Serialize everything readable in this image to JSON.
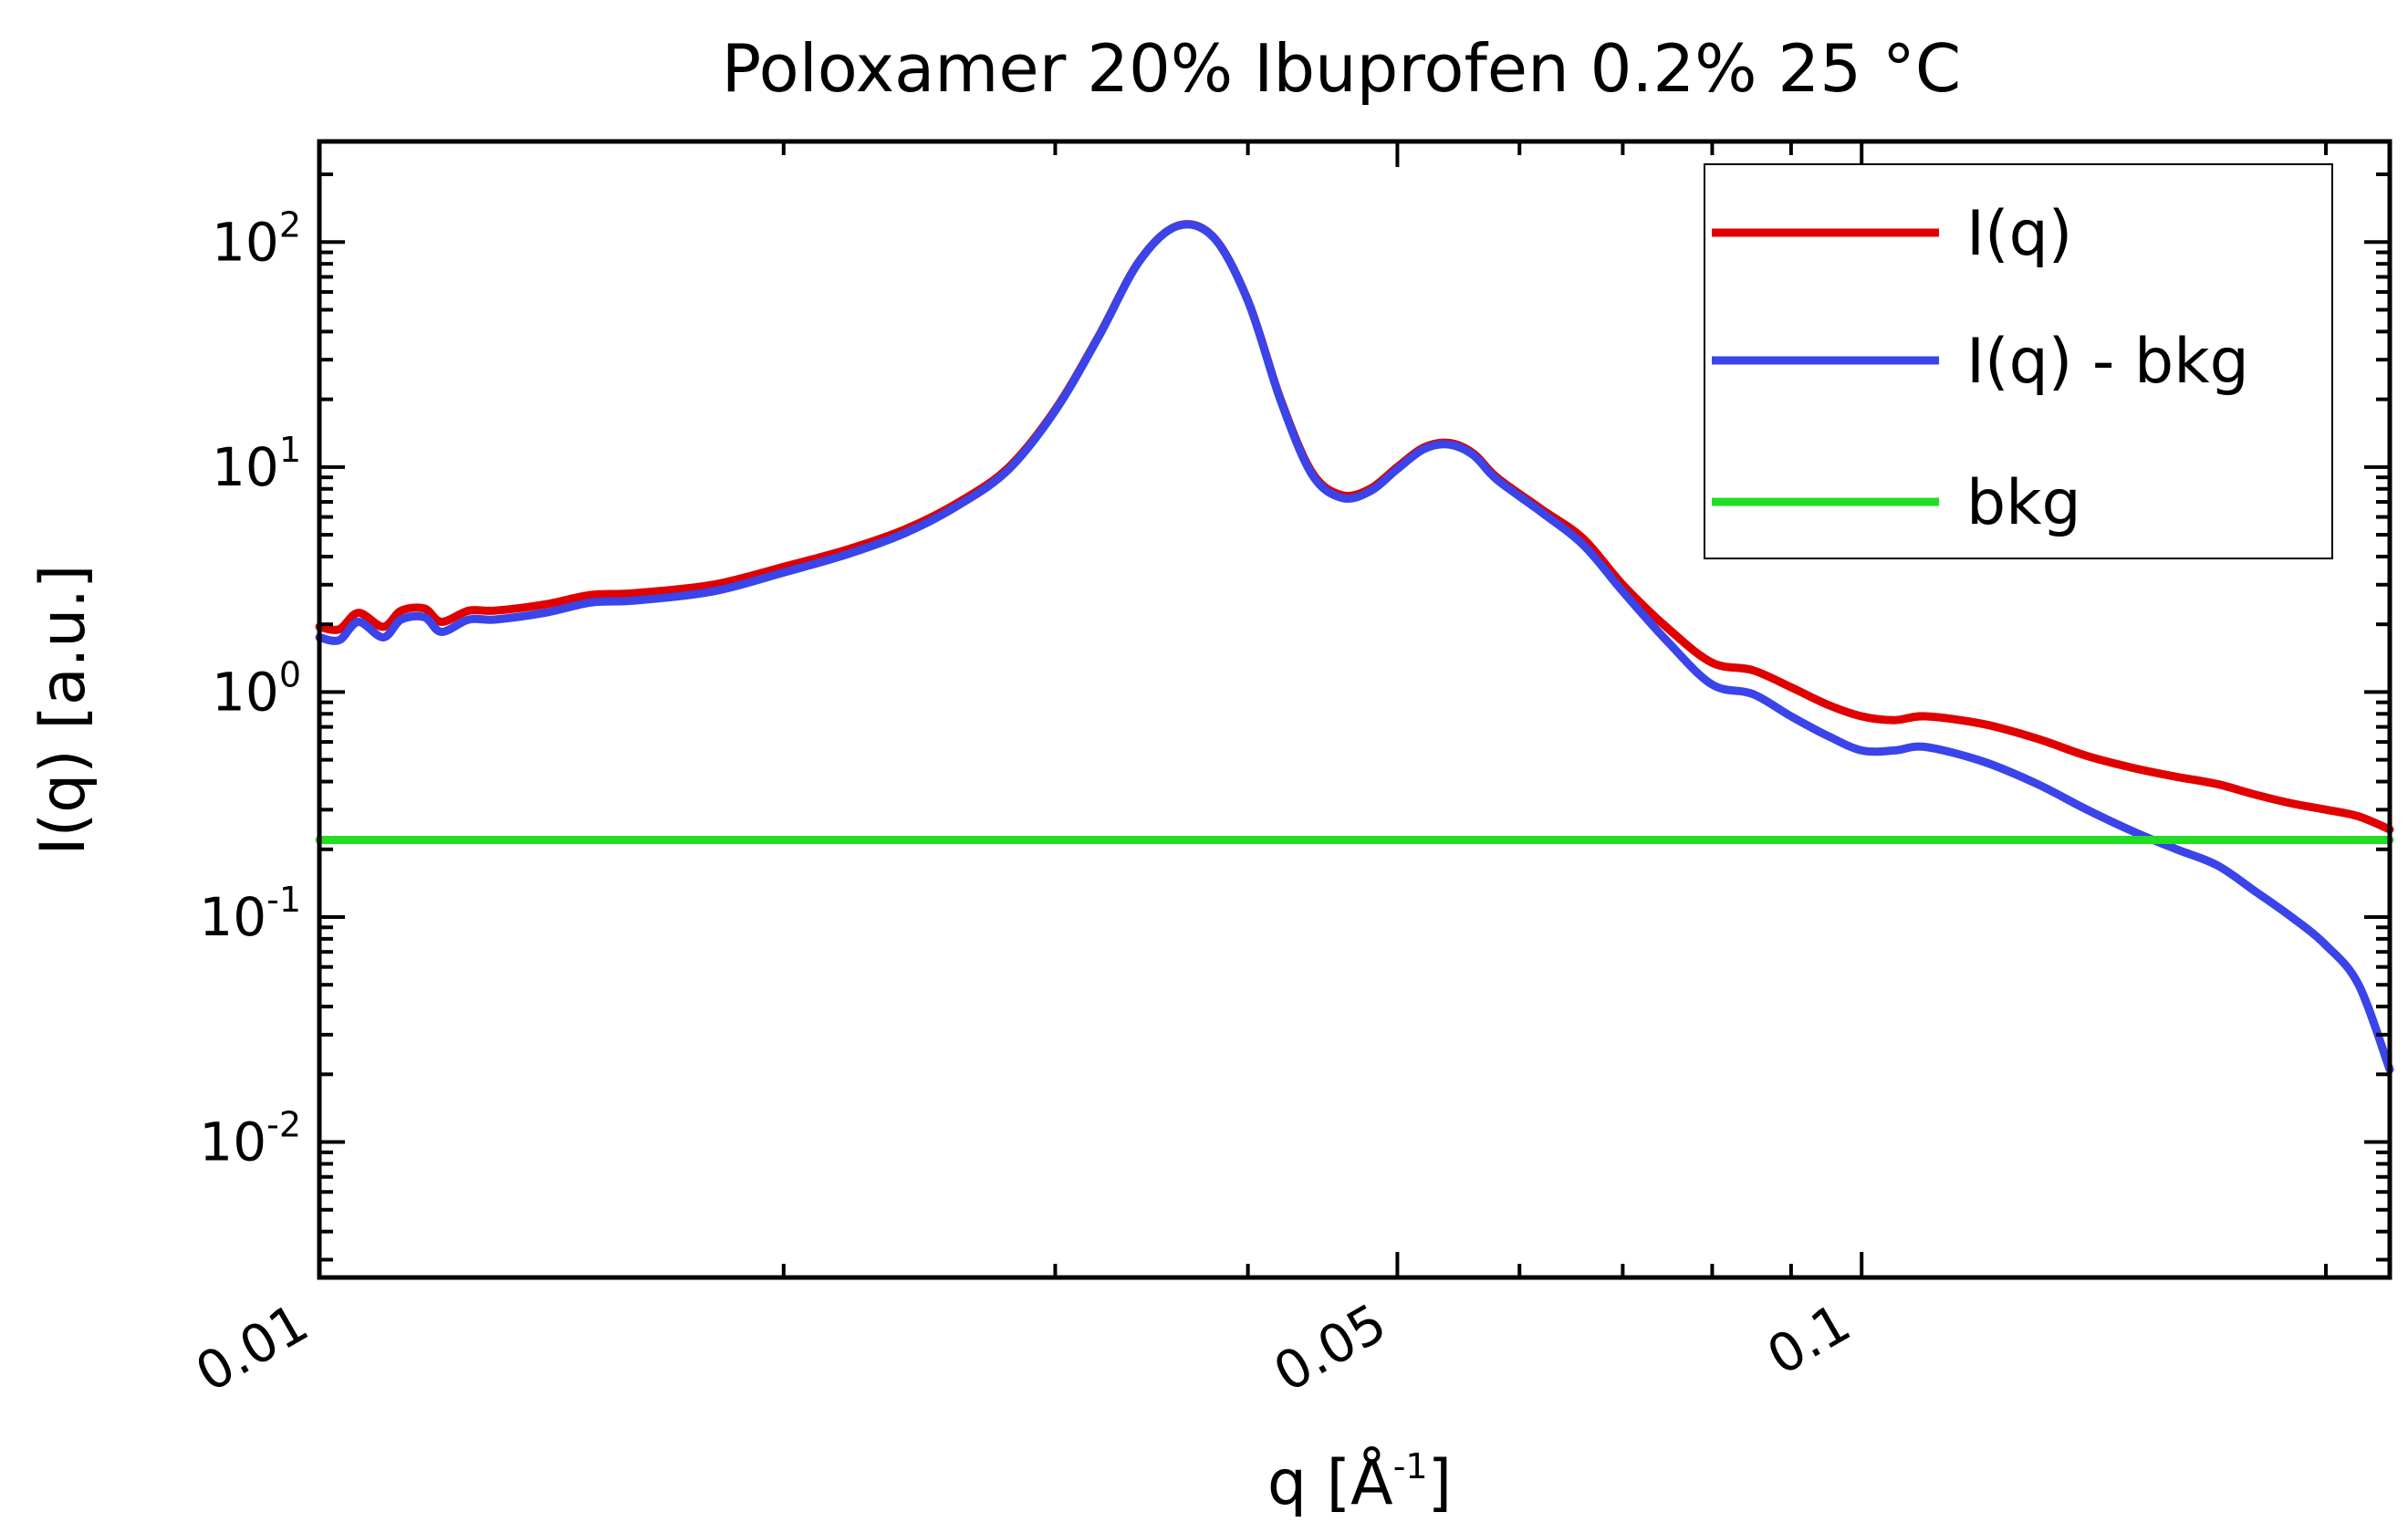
{
  "chart_data": {
    "type": "line",
    "title": "Poloxamer 20% Ibuprofen 0.2% 25 °C",
    "xlabel": "q  [Å",
    "xlabel_sup": "-1",
    "xlabel_close": "]",
    "ylabel": "I(q) [a.u.]",
    "xscale": "log",
    "yscale": "log",
    "xlim": [
      0.01,
      0.22
    ],
    "ylim": [
      0.0025,
      280
    ],
    "grid": false,
    "legend_position": "top-right",
    "x_ticks": [
      {
        "value": 0.01,
        "label": "0.01"
      },
      {
        "value": 0.05,
        "label": "0.05"
      },
      {
        "value": 0.1,
        "label": "0.1"
      }
    ],
    "y_ticks": [
      {
        "value": 100,
        "base": "10",
        "exp": "2"
      },
      {
        "value": 10,
        "base": "10",
        "exp": "1"
      },
      {
        "value": 1,
        "base": "10",
        "exp": "0"
      },
      {
        "value": 0.1,
        "base": "10",
        "exp": "-1"
      },
      {
        "value": 0.01,
        "base": "10",
        "exp": "-2"
      }
    ],
    "series": [
      {
        "name": "I(q)",
        "color": "#e00000",
        "points": [
          [
            0.01,
            1.95
          ],
          [
            0.0103,
            1.9
          ],
          [
            0.0106,
            2.25
          ],
          [
            0.011,
            1.95
          ],
          [
            0.0113,
            2.3
          ],
          [
            0.0117,
            2.35
          ],
          [
            0.012,
            2.05
          ],
          [
            0.0125,
            2.3
          ],
          [
            0.013,
            2.3
          ],
          [
            0.014,
            2.45
          ],
          [
            0.015,
            2.7
          ],
          [
            0.016,
            2.75
          ],
          [
            0.018,
            3.0
          ],
          [
            0.02,
            3.6
          ],
          [
            0.022,
            4.3
          ],
          [
            0.024,
            5.3
          ],
          [
            0.026,
            7.0
          ],
          [
            0.028,
            10.0
          ],
          [
            0.03,
            18.0
          ],
          [
            0.032,
            38.0
          ],
          [
            0.034,
            82.0
          ],
          [
            0.036,
            118.0
          ],
          [
            0.038,
            105.0
          ],
          [
            0.04,
            55.0
          ],
          [
            0.042,
            20.0
          ],
          [
            0.044,
            9.5
          ],
          [
            0.046,
            7.5
          ],
          [
            0.048,
            8.0
          ],
          [
            0.05,
            10.0
          ],
          [
            0.052,
            12.2
          ],
          [
            0.054,
            12.8
          ],
          [
            0.056,
            11.5
          ],
          [
            0.058,
            9.0
          ],
          [
            0.062,
            6.5
          ],
          [
            0.066,
            4.8
          ],
          [
            0.07,
            3.0
          ],
          [
            0.075,
            1.9
          ],
          [
            0.08,
            1.35
          ],
          [
            0.085,
            1.25
          ],
          [
            0.09,
            1.05
          ],
          [
            0.095,
            0.88
          ],
          [
            0.1,
            0.78
          ],
          [
            0.105,
            0.75
          ],
          [
            0.11,
            0.78
          ],
          [
            0.12,
            0.72
          ],
          [
            0.13,
            0.62
          ],
          [
            0.14,
            0.52
          ],
          [
            0.15,
            0.46
          ],
          [
            0.16,
            0.42
          ],
          [
            0.17,
            0.39
          ],
          [
            0.18,
            0.35
          ],
          [
            0.19,
            0.32
          ],
          [
            0.2,
            0.3
          ],
          [
            0.21,
            0.28
          ],
          [
            0.22,
            0.245
          ]
        ]
      },
      {
        "name": "I(q) - bkg",
        "color": "#3a44e8",
        "points": [
          [
            0.01,
            1.75
          ],
          [
            0.0103,
            1.7
          ],
          [
            0.0106,
            2.05
          ],
          [
            0.011,
            1.75
          ],
          [
            0.0113,
            2.1
          ],
          [
            0.0117,
            2.15
          ],
          [
            0.012,
            1.85
          ],
          [
            0.0125,
            2.1
          ],
          [
            0.013,
            2.1
          ],
          [
            0.014,
            2.25
          ],
          [
            0.015,
            2.5
          ],
          [
            0.016,
            2.55
          ],
          [
            0.018,
            2.8
          ],
          [
            0.02,
            3.4
          ],
          [
            0.022,
            4.1
          ],
          [
            0.024,
            5.1
          ],
          [
            0.026,
            6.8
          ],
          [
            0.028,
            9.8
          ],
          [
            0.03,
            17.8
          ],
          [
            0.032,
            37.8
          ],
          [
            0.034,
            81.8
          ],
          [
            0.036,
            117.8
          ],
          [
            0.038,
            104.8
          ],
          [
            0.04,
            54.8
          ],
          [
            0.042,
            19.8
          ],
          [
            0.044,
            9.3
          ],
          [
            0.046,
            7.3
          ],
          [
            0.048,
            7.8
          ],
          [
            0.05,
            9.8
          ],
          [
            0.052,
            12.0
          ],
          [
            0.054,
            12.6
          ],
          [
            0.056,
            11.3
          ],
          [
            0.058,
            8.8
          ],
          [
            0.062,
            6.3
          ],
          [
            0.066,
            4.5
          ],
          [
            0.07,
            2.8
          ],
          [
            0.075,
            1.65
          ],
          [
            0.08,
            1.08
          ],
          [
            0.085,
            0.98
          ],
          [
            0.09,
            0.78
          ],
          [
            0.095,
            0.64
          ],
          [
            0.1,
            0.55
          ],
          [
            0.105,
            0.55
          ],
          [
            0.11,
            0.57
          ],
          [
            0.12,
            0.49
          ],
          [
            0.13,
            0.39
          ],
          [
            0.14,
            0.3
          ],
          [
            0.15,
            0.24
          ],
          [
            0.16,
            0.2
          ],
          [
            0.17,
            0.17
          ],
          [
            0.18,
            0.13
          ],
          [
            0.19,
            0.1
          ],
          [
            0.2,
            0.075
          ],
          [
            0.21,
            0.05
          ],
          [
            0.22,
            0.021
          ]
        ]
      },
      {
        "name": "bkg",
        "color": "#22dd22",
        "points": [
          [
            0.01,
            0.22
          ],
          [
            0.22,
            0.22
          ]
        ]
      }
    ]
  }
}
